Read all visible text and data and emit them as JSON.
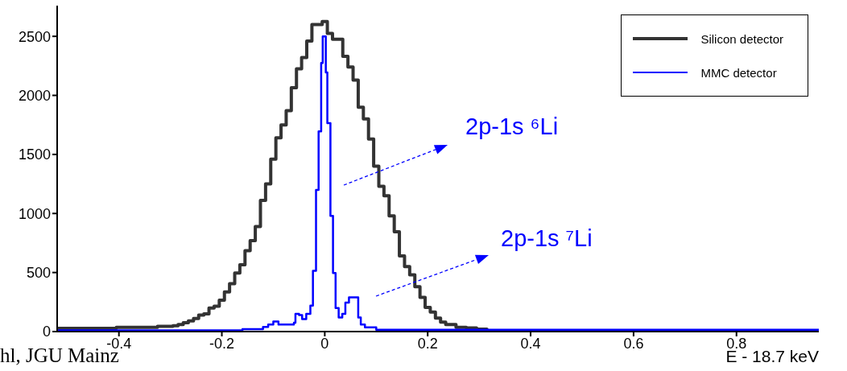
{
  "chart_data": {
    "type": "step",
    "xlabel": "E - 18.7 keV",
    "xlim": [
      -0.52,
      0.96
    ],
    "xticks": [
      -0.4,
      -0.2,
      0,
      0.2,
      0.4,
      0.6,
      0.8
    ],
    "ylim": [
      0,
      2760
    ],
    "yticks": [
      0,
      500,
      1000,
      1500,
      2000,
      2500
    ],
    "grid": false,
    "legend": "top right",
    "line_style": "solid",
    "marker": "none",
    "annotations": [
      "2p-1s ⁶Li",
      "2p-1s ⁷Li",
      "hl, JGU Mainz"
    ],
    "series": [
      {
        "name": "Silicon detector",
        "color": "#333333",
        "x": [
          -0.52,
          -0.405,
          -0.325,
          -0.295,
          -0.285,
          -0.275,
          -0.265,
          -0.255,
          -0.245,
          -0.235,
          -0.225,
          -0.215,
          -0.205,
          -0.195,
          -0.185,
          -0.175,
          -0.165,
          -0.155,
          -0.145,
          -0.135,
          -0.125,
          -0.115,
          -0.105,
          -0.095,
          -0.085,
          -0.075,
          -0.065,
          -0.055,
          -0.045,
          -0.035,
          -0.025,
          -0.015,
          -0.005,
          0.005,
          0.015,
          0.025,
          0.035,
          0.045,
          0.055,
          0.065,
          0.075,
          0.085,
          0.095,
          0.105,
          0.115,
          0.125,
          0.135,
          0.145,
          0.155,
          0.165,
          0.175,
          0.185,
          0.195,
          0.205,
          0.215,
          0.225,
          0.235,
          0.255,
          0.275,
          0.295,
          0.315,
          0.96
        ],
        "values": [
          27,
          35,
          45,
          50,
          60,
          75,
          90,
          110,
          140,
          150,
          200,
          215,
          265,
          335,
          405,
          495,
          565,
          685,
          770,
          890,
          1110,
          1250,
          1460,
          1640,
          1750,
          1870,
          2065,
          2225,
          2320,
          2460,
          2600,
          2600,
          2625,
          2525,
          2475,
          2475,
          2330,
          2240,
          2130,
          1900,
          1800,
          1630,
          1400,
          1230,
          1150,
          980,
          845,
          640,
          550,
          480,
          380,
          290,
          205,
          165,
          115,
          80,
          60,
          35,
          30,
          20,
          5,
          5
        ]
      },
      {
        "name": "MMC detector",
        "color": "#0000ff",
        "x": [
          -0.52,
          -0.16,
          -0.12,
          -0.11,
          -0.1,
          -0.09,
          -0.08,
          -0.06,
          -0.057,
          -0.05,
          -0.044,
          -0.036,
          -0.028,
          -0.023,
          -0.017,
          -0.012,
          -0.007,
          -0.004,
          0.002,
          0.005,
          0.011,
          0.016,
          0.021,
          0.027,
          0.034,
          0.04,
          0.047,
          0.065,
          0.07,
          0.078,
          0.1,
          0.96
        ],
        "values": [
          10,
          20,
          40,
          60,
          85,
          60,
          60,
          75,
          150,
          140,
          105,
          150,
          220,
          515,
          1200,
          1695,
          2275,
          2500,
          2195,
          1765,
          980,
          495,
          200,
          120,
          150,
          245,
          290,
          120,
          60,
          35,
          15,
          15
        ]
      }
    ]
  }
}
